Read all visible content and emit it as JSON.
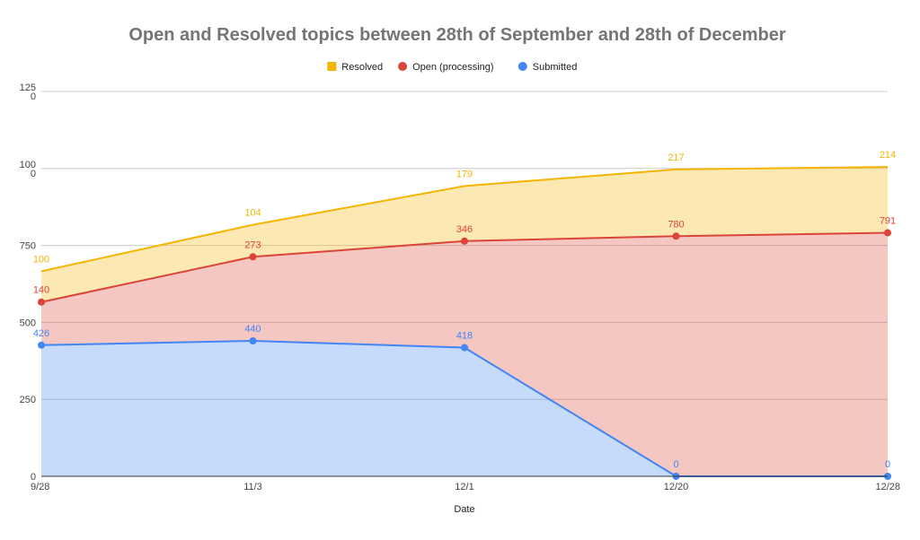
{
  "chart_data": {
    "type": "area",
    "stacked": true,
    "title": "Open and Resolved topics between 28th of September and 28th of December",
    "xlabel": "Date",
    "ylabel": "",
    "x": [
      "9/28",
      "11/3",
      "12/1",
      "12/20",
      "12/28"
    ],
    "ylim": [
      0,
      1250
    ],
    "yticks": [
      0,
      250,
      500,
      750,
      1000,
      1250
    ],
    "ytick_labels": [
      "0",
      "250",
      "500",
      "750",
      "100\n0",
      "125\n0"
    ],
    "grid": true,
    "legend_position": "top",
    "series": [
      {
        "name": "Submitted",
        "color": "#4285f4",
        "values": [
          426,
          440,
          418,
          0,
          0
        ],
        "labels": [
          "426",
          "440",
          "418",
          "0",
          "0"
        ]
      },
      {
        "name": "Open (processing)",
        "color": "#db4437",
        "values": [
          140,
          273,
          346,
          780,
          791
        ],
        "labels": [
          "140",
          "273",
          "346",
          "780",
          "791"
        ]
      },
      {
        "name": "Resolved",
        "color": "#f4b400",
        "values": [
          100,
          104,
          179,
          217,
          214
        ],
        "labels": [
          "100",
          "104",
          "179",
          "217",
          "214"
        ]
      }
    ],
    "legend_order": [
      "Resolved",
      "Open (processing)",
      "Submitted"
    ]
  }
}
